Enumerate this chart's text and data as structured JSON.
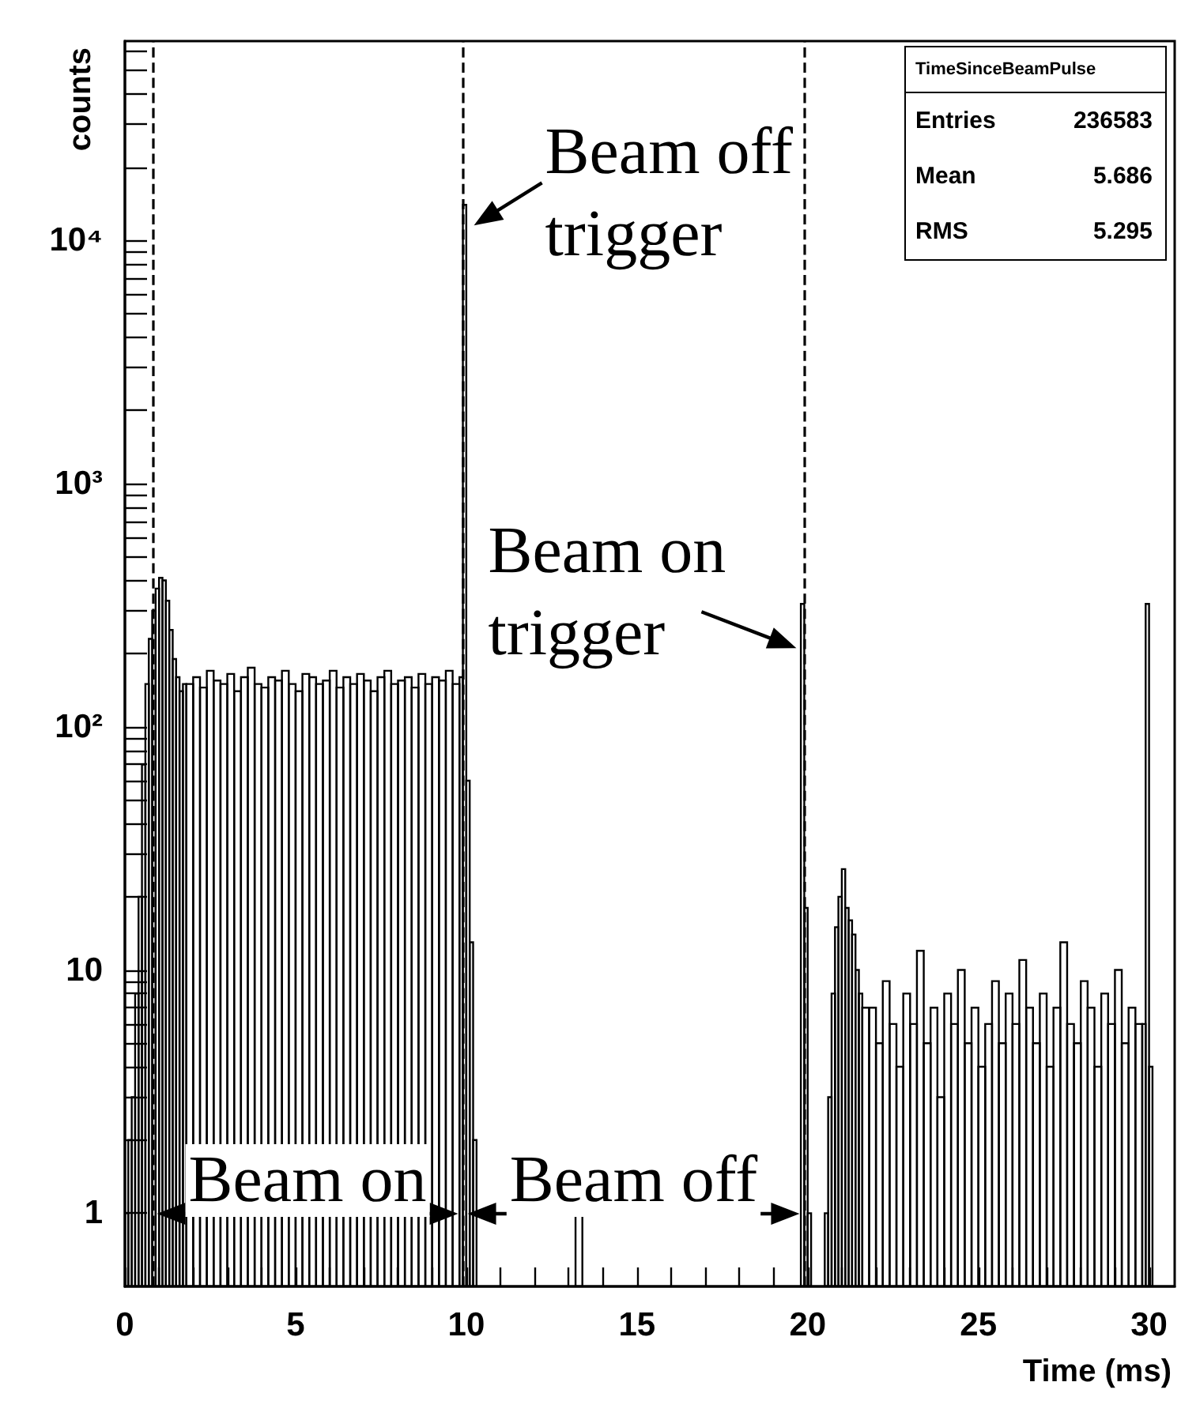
{
  "chart_data": {
    "type": "histogram",
    "xlabel": "Time (ms)",
    "ylabel": "counts",
    "color": "#000000",
    "log": "y",
    "xlim": [
      0,
      30.75
    ],
    "ylim": [
      0.5,
      66000
    ],
    "xticks": [
      0,
      {
        "value": 1,
        "label": null
      },
      {
        "value": 2,
        "label": null
      },
      {
        "value": 3,
        "label": null
      },
      {
        "value": 4,
        "label": null
      },
      5,
      {
        "value": 6,
        "label": null
      },
      {
        "value": 7,
        "label": null
      },
      {
        "value": 8,
        "label": null
      },
      {
        "value": 9,
        "label": null
      },
      10,
      {
        "value": 11,
        "label": null
      },
      {
        "value": 12,
        "label": null
      },
      {
        "value": 13,
        "label": null
      },
      {
        "value": 14,
        "label": null
      },
      15,
      {
        "value": 16,
        "label": null
      },
      {
        "value": 17,
        "label": null
      },
      {
        "value": 18,
        "label": null
      },
      {
        "value": 19,
        "label": null
      },
      20,
      {
        "value": 21,
        "label": null
      },
      {
        "value": 22,
        "label": null
      },
      {
        "value": 23,
        "label": null
      },
      {
        "value": 24,
        "label": null
      },
      25,
      {
        "value": 26,
        "label": null
      },
      {
        "value": 27,
        "label": null
      },
      {
        "value": 28,
        "label": null
      },
      {
        "value": 29,
        "label": null
      },
      30
    ],
    "yticks": [
      1,
      {
        "value": 2,
        "label": null
      },
      {
        "value": 3,
        "label": null
      },
      {
        "value": 4,
        "label": null
      },
      {
        "value": 5,
        "label": null
      },
      {
        "value": 6,
        "label": null
      },
      {
        "value": 7,
        "label": null
      },
      {
        "value": 8,
        "label": null
      },
      {
        "value": 9,
        "label": null
      },
      10,
      {
        "value": 20,
        "label": null
      },
      {
        "value": 30,
        "label": null
      },
      {
        "value": 40,
        "label": null
      },
      {
        "value": 50,
        "label": null
      },
      {
        "value": 60,
        "label": null
      },
      {
        "value": 70,
        "label": null
      },
      {
        "value": 80,
        "label": null
      },
      {
        "value": 90,
        "label": null
      },
      {
        "value": 100,
        "label": "10²"
      },
      {
        "value": 200,
        "label": null
      },
      {
        "value": 300,
        "label": null
      },
      {
        "value": 400,
        "label": null
      },
      {
        "value": 500,
        "label": null
      },
      {
        "value": 600,
        "label": null
      },
      {
        "value": 700,
        "label": null
      },
      {
        "value": 800,
        "label": null
      },
      {
        "value": 900,
        "label": null
      },
      {
        "value": 1000,
        "label": "10³"
      },
      {
        "value": 2000,
        "label": null
      },
      {
        "value": 3000,
        "label": null
      },
      {
        "value": 4000,
        "label": null
      },
      {
        "value": 5000,
        "label": null
      },
      {
        "value": 6000,
        "label": null
      },
      {
        "value": 7000,
        "label": null
      },
      {
        "value": 8000,
        "label": null
      },
      {
        "value": 9000,
        "label": null
      },
      {
        "value": 10000,
        "label": "10⁴"
      },
      {
        "value": 20000,
        "label": null
      },
      {
        "value": 30000,
        "label": null
      },
      {
        "value": 40000,
        "label": null
      },
      {
        "value": 50000,
        "label": null
      },
      {
        "value": 60000,
        "label": null
      }
    ],
    "bins": [
      0,
      0.1,
      0.2,
      0.3,
      0.4,
      0.5,
      0.6,
      0.7,
      0.8,
      0.9,
      1.0,
      1.1,
      1.2,
      1.3,
      1.4,
      1.5,
      1.6,
      1.7,
      1.8,
      2,
      2.2,
      2.4,
      2.6,
      2.8,
      3,
      3.2,
      3.4,
      3.6,
      3.8,
      4,
      4.2,
      4.4,
      4.6,
      4.8,
      5,
      5.2,
      5.4,
      5.6,
      5.8,
      6,
      6.2,
      6.4,
      6.6,
      6.8,
      7,
      7.2,
      7.4,
      7.6,
      7.8,
      8,
      8.2,
      8.4,
      8.6,
      8.8,
      9,
      9.2,
      9.4,
      9.6,
      9.8,
      9.9,
      10.0,
      10.1,
      10.2,
      10.3,
      13.2,
      13.4,
      19.8,
      19.9,
      20.0,
      20.1,
      20.5,
      20.6,
      20.7,
      20.8,
      20.9,
      21.0,
      21.1,
      21.2,
      21.3,
      21.4,
      21.5,
      21.6,
      21.8,
      22,
      22.2,
      22.4,
      22.6,
      22.8,
      23,
      23.2,
      23.4,
      23.6,
      23.8,
      24,
      24.2,
      24.4,
      24.6,
      24.8,
      25,
      25.2,
      25.4,
      25.6,
      25.8,
      26,
      26.2,
      26.4,
      26.6,
      26.8,
      27,
      27.2,
      27.4,
      27.6,
      27.8,
      28,
      28.2,
      28.4,
      28.6,
      28.8,
      29,
      29.2,
      29.4,
      29.6,
      29.8,
      29.9,
      30.0,
      30.1
    ],
    "values": [
      1,
      2,
      3,
      8,
      20,
      70,
      150,
      230,
      300,
      370,
      410,
      400,
      330,
      250,
      190,
      160,
      140,
      150,
      150,
      160,
      145,
      170,
      155,
      150,
      165,
      140,
      160,
      175,
      150,
      145,
      160,
      155,
      170,
      150,
      140,
      165,
      160,
      150,
      155,
      170,
      145,
      160,
      150,
      165,
      155,
      140,
      160,
      170,
      150,
      155,
      160,
      145,
      165,
      150,
      160,
      155,
      170,
      150,
      160,
      14000,
      60,
      13,
      2,
      null,
      1,
      null,
      320,
      18,
      1,
      null,
      1,
      3,
      8,
      15,
      20,
      26,
      18,
      16,
      14,
      10,
      8,
      7,
      7,
      5,
      9,
      6,
      4,
      8,
      6,
      12,
      5,
      7,
      3,
      8,
      6,
      10,
      5,
      7,
      4,
      6,
      9,
      5,
      8,
      6,
      11,
      7,
      5,
      8,
      4,
      7,
      13,
      6,
      5,
      9,
      7,
      4,
      8,
      6,
      10,
      5,
      7,
      6,
      6,
      320,
      4
    ],
    "ref_lines": [
      {
        "axis": "x",
        "value": 0.8,
        "color": "#000000",
        "line_style": "dashed"
      },
      {
        "axis": "x",
        "value": 9.9,
        "color": "#000000",
        "line_style": "dashed"
      },
      {
        "axis": "x",
        "value": 19.9,
        "color": "#000000",
        "line_style": "dashed"
      }
    ],
    "annotations": [
      {
        "text": "Beam off\ntrigger",
        "x": 9.9,
        "y": 14000
      },
      {
        "text": "Beam on\ntrigger",
        "x": 19.9,
        "y": 320
      },
      "Beam on",
      "Beam off",
      "TimeSinceBeamPulse",
      "Entries 236583",
      "Mean 5.686",
      "RMS 5.295"
    ]
  }
}
